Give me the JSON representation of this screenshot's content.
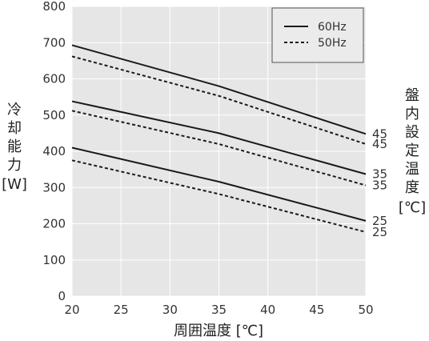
{
  "chart_data": {
    "type": "line",
    "xlabel": "周囲温度 [℃]",
    "ylabel_chars": [
      "冷",
      "却",
      "能",
      "力",
      "[W]"
    ],
    "right_label_chars": [
      "盤",
      "内",
      "設",
      "定",
      "温",
      "度",
      "[℃]"
    ],
    "xlim": [
      20,
      50
    ],
    "ylim": [
      0,
      800
    ],
    "x_ticks": [
      20,
      25,
      30,
      35,
      40,
      45,
      50
    ],
    "y_ticks": [
      0,
      100,
      200,
      300,
      400,
      500,
      600,
      700,
      800
    ],
    "grid": true,
    "legend": {
      "position": "top-right",
      "entries": [
        {
          "name": "60Hz",
          "style": "solid"
        },
        {
          "name": "50Hz",
          "style": "dashed"
        }
      ]
    },
    "colors": {
      "plot_background": "#e6e6e6",
      "grid": "#ffffff",
      "line": "#1a1a1a"
    },
    "series": [
      {
        "name": "60Hz",
        "setpoint": "45",
        "style": "solid",
        "x": [
          20,
          35,
          50
        ],
        "values": [
          693,
          580,
          448
        ]
      },
      {
        "name": "50Hz",
        "setpoint": "45",
        "style": "dashed",
        "x": [
          20,
          35,
          50
        ],
        "values": [
          662,
          553,
          420
        ]
      },
      {
        "name": "60Hz",
        "setpoint": "35",
        "style": "solid",
        "x": [
          20,
          35,
          50
        ],
        "values": [
          538,
          450,
          337
        ]
      },
      {
        "name": "50Hz",
        "setpoint": "35",
        "style": "dashed",
        "x": [
          20,
          35,
          50
        ],
        "values": [
          512,
          420,
          306
        ]
      },
      {
        "name": "60Hz",
        "setpoint": "25",
        "style": "solid",
        "x": [
          20,
          35,
          50
        ],
        "values": [
          410,
          316,
          208
        ]
      },
      {
        "name": "50Hz",
        "setpoint": "25",
        "style": "dashed",
        "x": [
          20,
          35,
          50
        ],
        "values": [
          375,
          282,
          177
        ]
      }
    ]
  }
}
